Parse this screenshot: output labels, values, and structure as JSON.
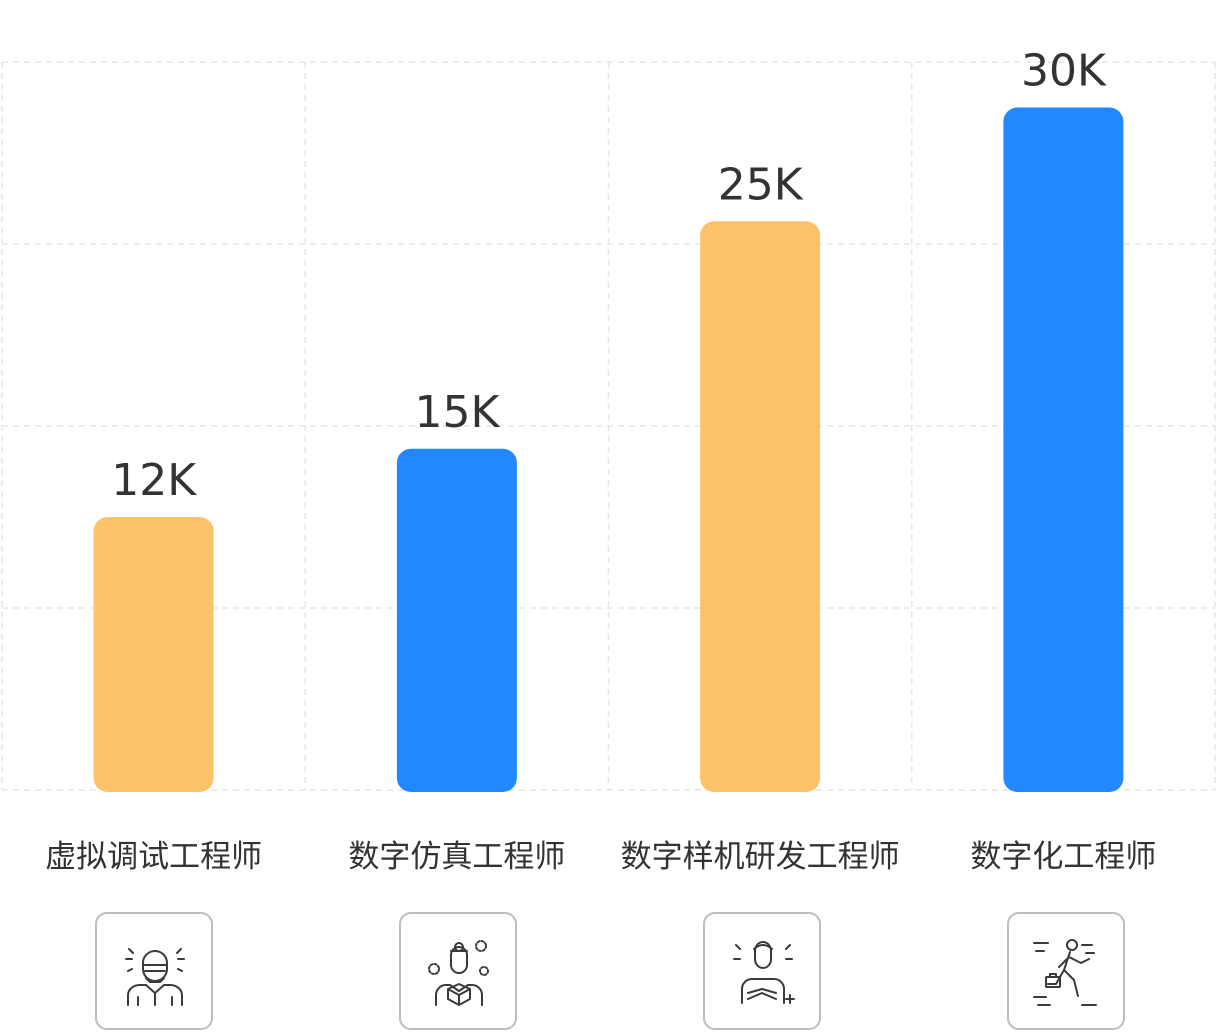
{
  "chart_data": {
    "type": "bar",
    "categories": [
      "虚拟调试工程师",
      "数字仿真工程师",
      "数字样机研发工程师",
      "数字化工程师"
    ],
    "values": [
      12,
      15,
      25,
      30
    ],
    "value_labels": [
      "12K",
      "15K",
      "25K",
      "30K"
    ],
    "colors": [
      "#FDC36A",
      "#2288FF",
      "#FDC36A",
      "#2288FF"
    ],
    "ylim": [
      0,
      32
    ],
    "grid": true,
    "title": "",
    "xlabel": "",
    "ylabel": ""
  },
  "icons": [
    {
      "name": "masked-engineer-icon"
    },
    {
      "name": "engineer-with-box-icon"
    },
    {
      "name": "thinking-engineer-icon"
    },
    {
      "name": "running-engineer-icon"
    }
  ]
}
